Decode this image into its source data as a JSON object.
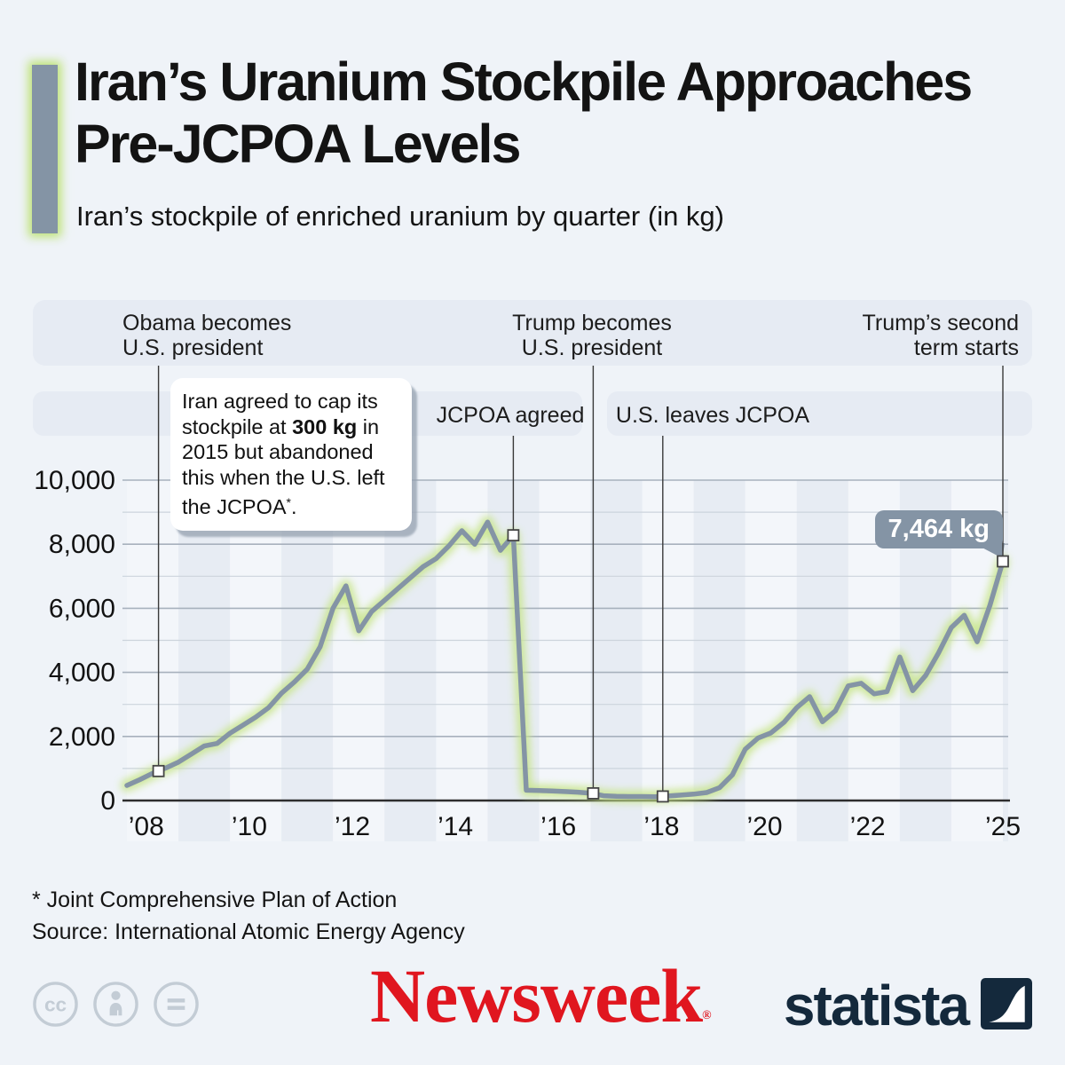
{
  "header": {
    "title_line1": "Iran’s Uranium Stockpile Approaches",
    "title_line2": "Pre-JCPOA Levels",
    "subtitle": "Iran’s stockpile of enriched uranium by quarter (in kg)"
  },
  "events": [
    {
      "id": "obama",
      "band": 1,
      "x_index": 2.45,
      "marker_value": 920,
      "label_line1": "Obama becomes",
      "label_line2": "U.S. president"
    },
    {
      "id": "jcpoa",
      "band": 2,
      "x_index": 30,
      "marker_value": 8280,
      "label": "JCPOA agreed"
    },
    {
      "id": "trump1",
      "band": 1,
      "x_index": 36.2,
      "marker_value": 225,
      "label_line1": "Trump becomes",
      "label_line2": "U.S. president"
    },
    {
      "id": "usleaves",
      "band": 2,
      "x_index": 41.6,
      "marker_value": 128,
      "label": "U.S. leaves JCPOA"
    },
    {
      "id": "trump2",
      "band": 1,
      "x_index": 68,
      "marker_value": 7464,
      "label_line1": "Trump’s second",
      "label_line2": "term starts"
    }
  ],
  "callout": {
    "line1": "Iran agreed to cap its",
    "line2_pre": "stockpile at ",
    "line2_bold": "300 kg",
    "line2_post": " in",
    "line3": "2015 but abandoned",
    "line4": "this when the U.S. left",
    "line5_pre": "the JCPOA",
    "line5_sup": "*",
    "line5_post": "."
  },
  "value_badge": {
    "label": "7,464 kg"
  },
  "chart_data": {
    "type": "line",
    "title": "Iran’s stockpile of enriched uranium by quarter (in kg)",
    "unit": "kg",
    "x_start": "2008-Q1",
    "x_end": "2025-Q1",
    "ylim": [
      0,
      10000
    ],
    "grid": "on",
    "y_ticks": [
      {
        "value": 0,
        "label": "0"
      },
      {
        "value": 2000,
        "label": "2,000"
      },
      {
        "value": 4000,
        "label": "4,000"
      },
      {
        "value": 6000,
        "label": "6,000"
      },
      {
        "value": 8000,
        "label": "8,000"
      },
      {
        "value": 10000,
        "label": "10,000"
      }
    ],
    "x_ticks": [
      {
        "year": 2008,
        "index": 1.5,
        "label": "’08"
      },
      {
        "year": 2010,
        "index": 9.5,
        "label": "’10"
      },
      {
        "year": 2012,
        "index": 17.5,
        "label": "’12"
      },
      {
        "year": 2014,
        "index": 25.5,
        "label": "’14"
      },
      {
        "year": 2016,
        "index": 33.5,
        "label": "’16"
      },
      {
        "year": 2018,
        "index": 41.5,
        "label": "’18"
      },
      {
        "year": 2020,
        "index": 49.5,
        "label": "’20"
      },
      {
        "year": 2022,
        "index": 57.5,
        "label": "’22"
      },
      {
        "year": 2025,
        "index": 68,
        "label": "’25"
      }
    ],
    "values": [
      470,
      650,
      850,
      1010,
      1200,
      1450,
      1700,
      1780,
      2100,
      2350,
      2600,
      2900,
      3350,
      3700,
      4100,
      4800,
      6000,
      6700,
      5300,
      5900,
      6250,
      6600,
      6950,
      7300,
      7550,
      7950,
      8420,
      8000,
      8690,
      7810,
      8280,
      320,
      310,
      300,
      280,
      260,
      230,
      150,
      130,
      125,
      125,
      120,
      140,
      170,
      200,
      250,
      400,
      800,
      1600,
      1950,
      2110,
      2440,
      2900,
      3240,
      2460,
      2800,
      3580,
      3660,
      3330,
      3400,
      4480,
      3430,
      3900,
      4600,
      5400,
      5780,
      4955,
      6100,
      7464
    ],
    "final_value_label": "7,464 kg"
  },
  "style": {
    "page_bg": "#eff3f8",
    "band_bg": "#e6ebf3",
    "line": "#8494a5",
    "glow": "#c7e589",
    "stripe_light": "#f3f6fa",
    "stripe_dark": "#e7ecf3",
    "grid_major": "#a7b1bd",
    "grid_minor": "#ccd4dc",
    "axis": "#2e2e2e",
    "badge_bg": "#8494a5",
    "newsweek_red": "#e0161f",
    "statista_navy": "#14293c",
    "cc_gray": "#c3ccd5"
  },
  "footer": {
    "footnote": "* Joint Comprehensive Plan of Action",
    "source": "Source: International Atomic Energy Agency",
    "newsweek_logo": "Newsweek",
    "newsweek_reg": "®",
    "statista_logo": "statista",
    "cc_icons": [
      "cc-license-icon",
      "attribution-icon",
      "no-derivatives-icon"
    ]
  }
}
